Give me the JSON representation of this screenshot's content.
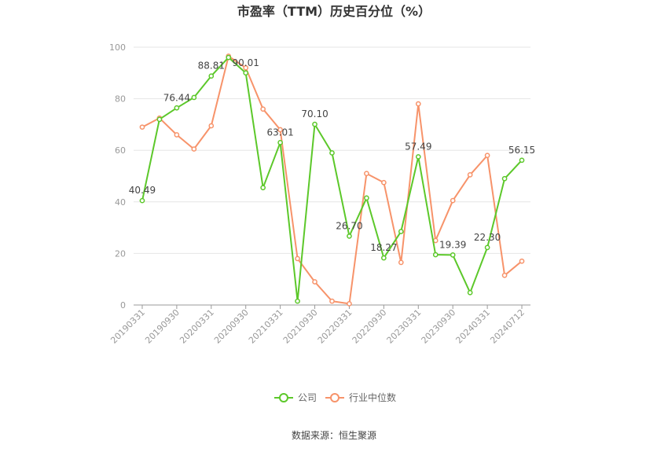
{
  "chart_data": {
    "type": "line",
    "title": "市盈率（TTM）历史百分位（%）",
    "xlabel": "",
    "ylabel": "",
    "ylim": [
      0,
      100
    ],
    "yticks": [
      0,
      20,
      40,
      60,
      80,
      100
    ],
    "grid": true,
    "legend_position": "bottom",
    "x_tick_labels": [
      "20190331",
      "20190930",
      "20200331",
      "20200930",
      "20210331",
      "20210930",
      "20220331",
      "20220930",
      "20230331",
      "20230930",
      "20240331",
      "20240712"
    ],
    "series": [
      {
        "name": "公司",
        "color": "#5cc82a",
        "values": [
          40.49,
          72.0,
          76.44,
          80.5,
          88.81,
          96.0,
          90.01,
          45.5,
          63.01,
          1.5,
          70.1,
          59.0,
          26.7,
          41.5,
          18.27,
          28.5,
          57.49,
          19.5,
          19.39,
          4.8,
          22.3,
          49.0,
          56.15
        ],
        "labels": [
          "40.49",
          "",
          "76.44",
          "",
          "88.81",
          "",
          "90.01",
          "",
          "63.01",
          "",
          "70.10",
          "",
          "26.70",
          "",
          "18.27",
          "",
          "57.49",
          "",
          "19.39",
          "",
          "22.30",
          "",
          "56.15"
        ]
      },
      {
        "name": "行业中位数",
        "color": "#f7936a",
        "values": [
          69.0,
          72.5,
          66.0,
          60.5,
          69.5,
          96.5,
          92.0,
          76.0,
          68.0,
          18.0,
          9.0,
          1.5,
          0.5,
          51.0,
          47.5,
          16.5,
          78.0,
          25.0,
          40.5,
          50.5,
          58.0,
          11.5,
          17.0
        ]
      }
    ]
  },
  "source": "数据来源：恒生聚源"
}
